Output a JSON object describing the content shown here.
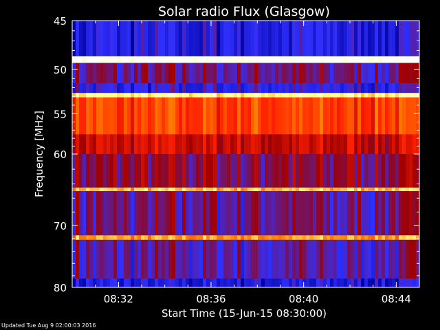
{
  "chart_data": {
    "type": "heatmap",
    "title": "Solar radio Flux (Glasgow)",
    "xlabel": "Start Time (15-Jun-15 08:30:00)",
    "ylabel": "Frequency [MHz]",
    "x_range": [
      "08:30:00",
      "08:45:00"
    ],
    "x_ticks": [
      "08:32",
      "08:36",
      "08:40",
      "08:44"
    ],
    "ylim": [
      45,
      80
    ],
    "y_scale": "log",
    "y_inverted": true,
    "y_ticks": [
      45,
      50,
      55,
      60,
      70,
      80
    ],
    "y_minor_ticks": [
      46,
      47,
      48,
      49,
      51,
      52,
      53,
      54,
      56,
      57,
      58,
      59,
      62,
      64,
      66,
      68,
      72,
      74,
      76,
      78
    ],
    "colormap": [
      "#0000a0",
      "#3030ff",
      "#a00000",
      "#ff2000",
      "#ff8000",
      "#ffff80",
      "#ffffff"
    ],
    "intensity_profile": [
      {
        "mhz_from": 45.0,
        "mhz_to": 48.6,
        "level": 0.12
      },
      {
        "mhz_from": 48.6,
        "mhz_to": 49.3,
        "level": 1.0
      },
      {
        "mhz_from": 49.3,
        "mhz_to": 51.5,
        "level": 0.25
      },
      {
        "mhz_from": 51.5,
        "mhz_to": 52.6,
        "level": 0.15
      },
      {
        "mhz_from": 52.6,
        "mhz_to": 53.1,
        "level": 0.85
      },
      {
        "mhz_from": 53.1,
        "mhz_to": 57.5,
        "level": 0.55
      },
      {
        "mhz_from": 57.5,
        "mhz_to": 60.0,
        "level": 0.4
      },
      {
        "mhz_from": 60.0,
        "mhz_to": 64.5,
        "level": 0.3
      },
      {
        "mhz_from": 64.5,
        "mhz_to": 65.0,
        "level": 0.75
      },
      {
        "mhz_from": 65.0,
        "mhz_to": 71.5,
        "level": 0.25
      },
      {
        "mhz_from": 71.5,
        "mhz_to": 72.2,
        "level": 0.7
      },
      {
        "mhz_from": 72.2,
        "mhz_to": 78.5,
        "level": 0.22
      },
      {
        "mhz_from": 78.5,
        "mhz_to": 80.0,
        "level": 0.1
      }
    ]
  },
  "footer": "Updated Tue Aug  9 02:00:03 2016"
}
